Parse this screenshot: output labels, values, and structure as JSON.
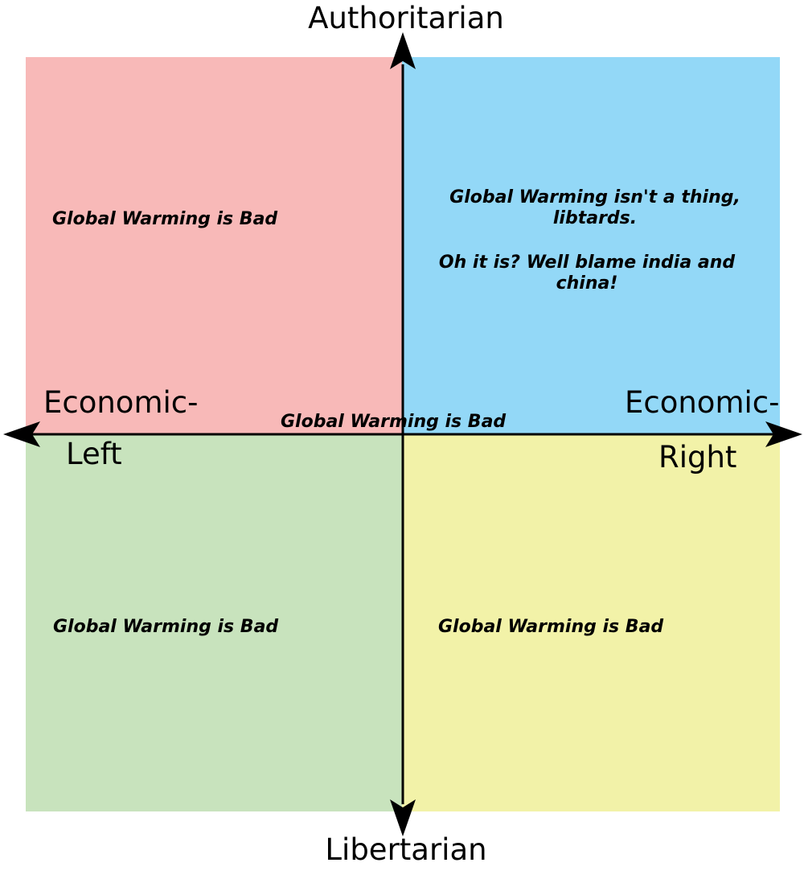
{
  "axes": {
    "top": "Authoritarian",
    "bottom": "Libertarian",
    "left_line1": "Economic-",
    "left_line2": "Left",
    "right_line1": "Economic-",
    "right_line2": "Right"
  },
  "quadrants": {
    "auth_left": {
      "color": "#f8b9b8",
      "text": "Global Warming is Bad"
    },
    "auth_right": {
      "color": "#93d8f7",
      "text_1": "Global Warming isn't a thing, libtards.",
      "text_2": "Oh it is? Well blame india and china!"
    },
    "lib_left": {
      "color": "#c8e3bd",
      "text": "Global Warming is Bad"
    },
    "lib_right": {
      "color": "#f2f2a8",
      "text": "Global Warming is Bad"
    }
  },
  "center": {
    "text": "Global Warming is Bad"
  }
}
